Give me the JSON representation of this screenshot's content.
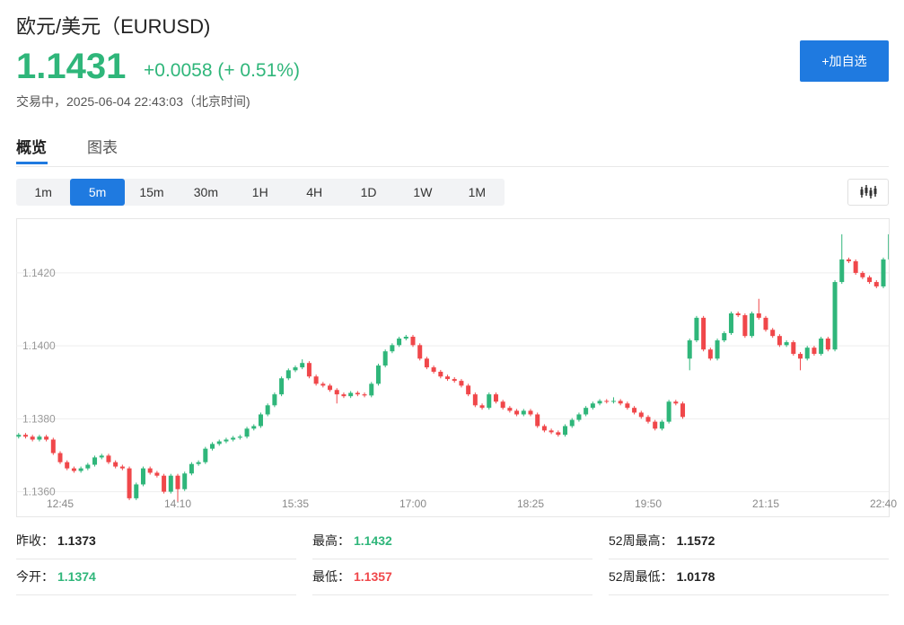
{
  "header": {
    "title": "欧元/美元（EURUSD)",
    "price": "1.1431",
    "change": "+0.0058 (+ 0.51%)",
    "status": "交易中，2025-06-04 22:43:03（北京时间)",
    "button": "+加自选"
  },
  "tabs": [
    "概览",
    "图表"
  ],
  "periods": [
    "1m",
    "5m",
    "15m",
    "30m",
    "1H",
    "4H",
    "1D",
    "1W",
    "1M"
  ],
  "active_period": 1,
  "stats": [
    {
      "label": "昨收：",
      "value": "1.1373",
      "color": "#222"
    },
    {
      "label": "最高：",
      "value": "1.1432",
      "color": "#2fb67a"
    },
    {
      "label": "52周最高：",
      "value": "1.1572",
      "color": "#222"
    },
    {
      "label": "今开：",
      "value": "1.1374",
      "color": "#2fb67a"
    },
    {
      "label": "最低：",
      "value": "1.1357",
      "color": "#f0474a"
    },
    {
      "label": "52周最低：",
      "value": "1.0178",
      "color": "#222"
    }
  ],
  "chart_data": {
    "type": "candlestick",
    "up_color": "#2fb67a",
    "down_color": "#f0474a",
    "grid": true,
    "ylim": [
      1.1353,
      1.1435
    ],
    "yticks": [
      {
        "value": 1.142,
        "label": "1.1420"
      },
      {
        "value": 1.14,
        "label": "1.1400"
      },
      {
        "value": 1.138,
        "label": "1.1380"
      },
      {
        "value": 1.136,
        "label": "1.1360"
      }
    ],
    "xlim": [
      -0.36,
      125.78
    ],
    "xticks": [
      {
        "value": 6,
        "label": "12:45"
      },
      {
        "value": 23,
        "label": "14:10"
      },
      {
        "value": 40,
        "label": "15:35"
      },
      {
        "value": 57,
        "label": "17:00"
      },
      {
        "value": 74,
        "label": "18:25"
      },
      {
        "value": 91,
        "label": "19:50"
      },
      {
        "value": 108,
        "label": "21:15"
      },
      {
        "value": 125,
        "label": "22:40"
      }
    ],
    "candles": [
      [
        1.13751,
        1.13761,
        1.13746,
        1.13756
      ],
      [
        1.13756,
        1.13761,
        1.13746,
        1.13751
      ],
      [
        1.13751,
        1.13756,
        1.13738,
        1.13743
      ],
      [
        1.13743,
        1.13756,
        1.13738,
        1.13751
      ],
      [
        1.13751,
        1.13756,
        1.13738,
        1.13743
      ],
      [
        1.13743,
        1.13748,
        1.13701,
        1.13706
      ],
      [
        1.13706,
        1.13711,
        1.13676,
        1.13681
      ],
      [
        1.13681,
        1.13686,
        1.13659,
        1.13664
      ],
      [
        1.13664,
        1.13669,
        1.13652,
        1.13657
      ],
      [
        1.13657,
        1.13669,
        1.13652,
        1.13664
      ],
      [
        1.13664,
        1.13679,
        1.13659,
        1.13674
      ],
      [
        1.13674,
        1.13699,
        1.13669,
        1.13694
      ],
      [
        1.13694,
        1.13704,
        1.13689,
        1.13699
      ],
      [
        1.13699,
        1.13704,
        1.13676,
        1.13681
      ],
      [
        1.13681,
        1.13686,
        1.13664,
        1.13669
      ],
      [
        1.13669,
        1.13674,
        1.13659,
        1.13664
      ],
      [
        1.13664,
        1.13669,
        1.13577,
        1.13582
      ],
      [
        1.13582,
        1.13625,
        1.13577,
        1.1362
      ],
      [
        1.1362,
        1.13669,
        1.13615,
        1.13664
      ],
      [
        1.13664,
        1.13669,
        1.13647,
        1.13652
      ],
      [
        1.13652,
        1.13657,
        1.13639,
        1.13644
      ],
      [
        1.13644,
        1.13649,
        1.13595,
        1.136
      ],
      [
        1.136,
        1.13649,
        1.13595,
        1.13644
      ],
      [
        1.13644,
        1.13649,
        1.13572,
        1.13607
      ],
      [
        1.13607,
        1.13655,
        1.13602,
        1.1365
      ],
      [
        1.1365,
        1.13681,
        1.13645,
        1.13676
      ],
      [
        1.13676,
        1.13686,
        1.13671,
        1.13681
      ],
      [
        1.13681,
        1.13723,
        1.13676,
        1.13718
      ],
      [
        1.13718,
        1.13736,
        1.13713,
        1.13731
      ],
      [
        1.13731,
        1.13743,
        1.13726,
        1.13738
      ],
      [
        1.13738,
        1.13748,
        1.13733,
        1.13743
      ],
      [
        1.13743,
        1.13753,
        1.13738,
        1.13748
      ],
      [
        1.13748,
        1.13756,
        1.13743,
        1.13751
      ],
      [
        1.13751,
        1.13778,
        1.13746,
        1.13773
      ],
      [
        1.13773,
        1.13785,
        1.13768,
        1.1378
      ],
      [
        1.1378,
        1.13817,
        1.13775,
        1.13812
      ],
      [
        1.13812,
        1.13842,
        1.13807,
        1.13837
      ],
      [
        1.13837,
        1.13872,
        1.13832,
        1.13867
      ],
      [
        1.13867,
        1.13916,
        1.13862,
        1.13911
      ],
      [
        1.13911,
        1.13938,
        1.13906,
        1.13933
      ],
      [
        1.13933,
        1.13946,
        1.13928,
        1.13941
      ],
      [
        1.13941,
        1.13963,
        1.13936,
        1.13953
      ],
      [
        1.13953,
        1.13958,
        1.13911,
        1.13916
      ],
      [
        1.13916,
        1.13921,
        1.13891,
        1.13896
      ],
      [
        1.13896,
        1.13901,
        1.13886,
        1.13891
      ],
      [
        1.13891,
        1.13896,
        1.13874,
        1.13879
      ],
      [
        1.13879,
        1.13884,
        1.13842,
        1.13867
      ],
      [
        1.13867,
        1.13872,
        1.13857,
        1.13862
      ],
      [
        1.13862,
        1.13876,
        1.13857,
        1.13871
      ],
      [
        1.13871,
        1.13876,
        1.13862,
        1.13867
      ],
      [
        1.13867,
        1.13872,
        1.13859,
        1.13864
      ],
      [
        1.13864,
        1.13901,
        1.13859,
        1.13896
      ],
      [
        1.13896,
        1.13951,
        1.13891,
        1.13946
      ],
      [
        1.13946,
        1.1399,
        1.13941,
        1.13985
      ],
      [
        1.13985,
        1.14007,
        1.1398,
        1.14002
      ],
      [
        1.14002,
        1.14025,
        1.13997,
        1.1402
      ],
      [
        1.1402,
        1.1403,
        1.14015,
        1.14025
      ],
      [
        1.14025,
        1.1403,
        1.13997,
        1.14002
      ],
      [
        1.14002,
        1.14007,
        1.1396,
        1.13965
      ],
      [
        1.13965,
        1.1397,
        1.13936,
        1.13941
      ],
      [
        1.13941,
        1.13946,
        1.13924,
        1.13929
      ],
      [
        1.13929,
        1.13934,
        1.13911,
        1.13916
      ],
      [
        1.13916,
        1.13921,
        1.13904,
        1.13909
      ],
      [
        1.13909,
        1.13914,
        1.13899,
        1.13904
      ],
      [
        1.13904,
        1.13909,
        1.13886,
        1.13891
      ],
      [
        1.13891,
        1.13896,
        1.13862,
        1.13867
      ],
      [
        1.13867,
        1.13872,
        1.13832,
        1.13837
      ],
      [
        1.13837,
        1.13842,
        1.13825,
        1.1383
      ],
      [
        1.1383,
        1.13872,
        1.13825,
        1.13867
      ],
      [
        1.13867,
        1.13872,
        1.13842,
        1.13847
      ],
      [
        1.13847,
        1.13852,
        1.13825,
        1.1383
      ],
      [
        1.1383,
        1.13835,
        1.13817,
        1.13822
      ],
      [
        1.13822,
        1.13827,
        1.13807,
        1.13812
      ],
      [
        1.13812,
        1.13827,
        1.13807,
        1.13822
      ],
      [
        1.13822,
        1.13827,
        1.13807,
        1.13812
      ],
      [
        1.13812,
        1.13817,
        1.13775,
        1.1378
      ],
      [
        1.1378,
        1.13785,
        1.13763,
        1.13768
      ],
      [
        1.13768,
        1.13773,
        1.13758,
        1.13763
      ],
      [
        1.13763,
        1.13768,
        1.13751,
        1.13756
      ],
      [
        1.13756,
        1.13785,
        1.13751,
        1.1378
      ],
      [
        1.1378,
        1.13802,
        1.13775,
        1.13797
      ],
      [
        1.13797,
        1.13817,
        1.13792,
        1.13812
      ],
      [
        1.13812,
        1.13835,
        1.13807,
        1.1383
      ],
      [
        1.1383,
        1.13847,
        1.13825,
        1.13842
      ],
      [
        1.13842,
        1.13854,
        1.13837,
        1.13849
      ],
      [
        1.13849,
        1.13854,
        1.13842,
        1.13847
      ],
      [
        1.13847,
        1.13859,
        1.13842,
        1.13849
      ],
      [
        1.13849,
        1.13854,
        1.13837,
        1.13842
      ],
      [
        1.13842,
        1.13847,
        1.13825,
        1.1383
      ],
      [
        1.1383,
        1.13835,
        1.13812,
        1.13817
      ],
      [
        1.13817,
        1.13822,
        1.138,
        1.13805
      ],
      [
        1.13805,
        1.1381,
        1.13787,
        1.13792
      ],
      [
        1.13792,
        1.13797,
        1.13768,
        1.13773
      ],
      [
        1.13773,
        1.13797,
        1.13768,
        1.13792
      ],
      [
        1.13792,
        1.13852,
        1.13787,
        1.13847
      ],
      [
        1.13847,
        1.13852,
        1.13837,
        1.13842
      ],
      [
        1.13842,
        1.13847,
        1.138,
        1.13805
      ],
      [
        1.13965,
        1.1402,
        1.13933,
        1.14015
      ],
      [
        1.14015,
        1.14082,
        1.1401,
        1.14077
      ],
      [
        1.14077,
        1.14082,
        1.13985,
        1.1399
      ],
      [
        1.1399,
        1.13995,
        1.1396,
        1.13965
      ],
      [
        1.13965,
        1.1402,
        1.1396,
        1.14015
      ],
      [
        1.14015,
        1.1404,
        1.1401,
        1.14035
      ],
      [
        1.14035,
        1.14094,
        1.1403,
        1.14089
      ],
      [
        1.14089,
        1.14094,
        1.14079,
        1.14084
      ],
      [
        1.14084,
        1.14089,
        1.14022,
        1.14027
      ],
      [
        1.14027,
        1.14094,
        1.14022,
        1.14089
      ],
      [
        1.14089,
        1.14129,
        1.14072,
        1.14077
      ],
      [
        1.14077,
        1.14082,
        1.14039,
        1.14044
      ],
      [
        1.14044,
        1.14049,
        1.14022,
        1.14027
      ],
      [
        1.14027,
        1.14032,
        1.13997,
        1.14002
      ],
      [
        1.14002,
        1.14015,
        1.13997,
        1.1401
      ],
      [
        1.1401,
        1.14015,
        1.13973,
        1.13978
      ],
      [
        1.13978,
        1.13983,
        1.13933,
        1.13965
      ],
      [
        1.13965,
        1.14,
        1.1396,
        1.13995
      ],
      [
        1.13995,
        1.14,
        1.13973,
        1.13978
      ],
      [
        1.13978,
        1.14025,
        1.13973,
        1.1402
      ],
      [
        1.1402,
        1.14025,
        1.13985,
        1.1399
      ],
      [
        1.1399,
        1.1418,
        1.13985,
        1.14175
      ],
      [
        1.14175,
        1.14306,
        1.1417,
        1.14237
      ],
      [
        1.14237,
        1.14242,
        1.14227,
        1.14232
      ],
      [
        1.14232,
        1.14237,
        1.14195,
        1.142
      ],
      [
        1.142,
        1.14205,
        1.14183,
        1.14188
      ],
      [
        1.14188,
        1.14193,
        1.1417,
        1.14175
      ],
      [
        1.14175,
        1.1418,
        1.14158,
        1.14163
      ],
      [
        1.14163,
        1.14242,
        1.14158,
        1.14237
      ],
      [
        1.14237,
        1.14311,
        1.14232,
        1.14306
      ]
    ]
  }
}
